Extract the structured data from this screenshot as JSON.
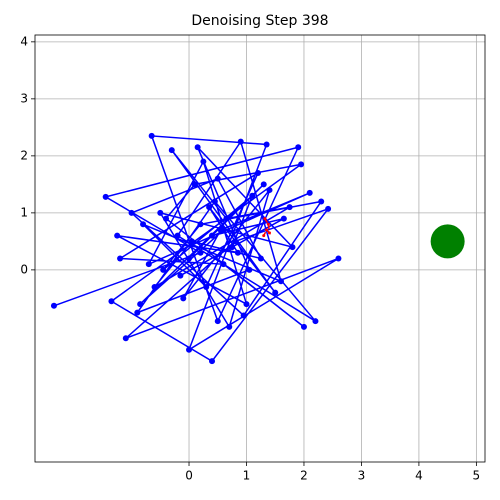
{
  "chart_data": {
    "type": "line",
    "title": "Denoising Step 398",
    "xlim": [
      -2.68,
      5.15
    ],
    "ylim": [
      -3.37,
      4.12
    ],
    "xticks": [
      0,
      1,
      2,
      3,
      4,
      5
    ],
    "yticks": [
      0,
      1,
      2,
      3,
      4
    ],
    "grid": true,
    "series": [
      {
        "color": "#0000ff",
        "marker_size": 3,
        "line": "solid",
        "x": [
          -2.35,
          0.2,
          -1.45,
          1.9,
          0.5,
          -0.65,
          1.35,
          0.0,
          2.6,
          -1.1,
          0.8,
          2.42,
          0.4,
          -1.35,
          1.95,
          0.1,
          -0.4,
          2.0,
          0.6,
          -1.2,
          1.2,
          0.3,
          -0.8,
          1.6,
          0.9,
          -0.2,
          2.2,
          0.45,
          -0.9,
          1.05,
          0.15,
          1.8,
          -0.5,
          0.7,
          1.4,
          -0.1,
          0.55,
          2.1,
          -0.7,
          0.25,
          1.0,
          -1.25,
          0.85,
          0.35,
          1.5,
          -0.3,
          0.65,
          1.75,
          -0.6,
          0.05,
          1.25,
          0.5,
          -1.0,
          0.95,
          2.3,
          0.2,
          -0.45,
          1.1,
          0.75,
          -0.15,
          1.65,
          0.4,
          0.0,
          1.3,
          -0.85,
          0.6
        ],
        "values": [
          -0.63,
          0.3,
          1.28,
          2.15,
          -0.9,
          2.35,
          2.2,
          -1.4,
          0.2,
          -1.2,
          0.5,
          1.07,
          -1.6,
          -0.55,
          1.85,
          1.5,
          0.9,
          -1.0,
          0.1,
          0.2,
          1.7,
          -0.3,
          0.8,
          -0.2,
          2.25,
          0.6,
          -0.9,
          1.2,
          -0.75,
          0.0,
          2.15,
          0.4,
          1.0,
          -1.0,
          1.4,
          -0.5,
          0.7,
          1.35,
          0.1,
          1.9,
          -0.6,
          0.6,
          0.3,
          1.1,
          -0.4,
          2.1,
          0.9,
          1.1,
          -0.3,
          0.5,
          0.2,
          1.6,
          1.0,
          -0.8,
          1.2,
          0.8,
          0.0,
          1.3,
          0.4,
          -0.1,
          0.9,
          0.6,
          0.2,
          1.5,
          -0.6,
          0.7
        ]
      },
      {
        "color": "#ff0000",
        "marker_size": 1.5,
        "line": "dashed",
        "x": [
          1.3,
          1.35,
          1.4,
          1.38,
          1.32
        ],
        "values": [
          0.6,
          0.7,
          0.65,
          0.8,
          0.9
        ]
      },
      {
        "color": "#008000",
        "marker_size": 17,
        "line": "none",
        "x": [
          4.5
        ],
        "values": [
          0.5
        ]
      }
    ]
  }
}
